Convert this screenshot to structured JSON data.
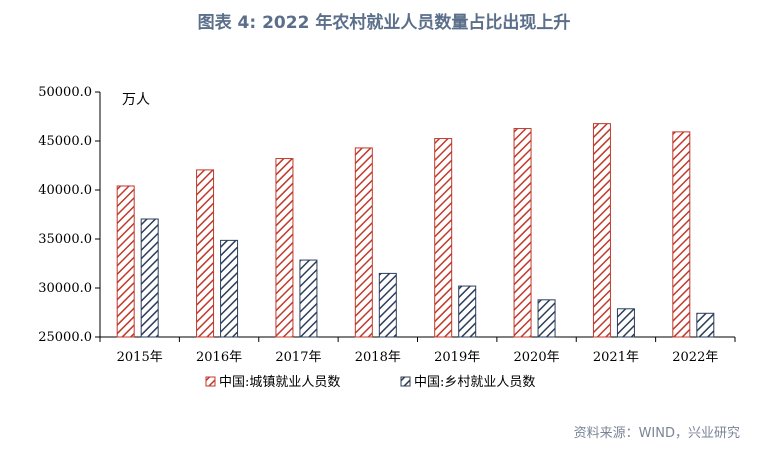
{
  "title": "图表 4:  2022 年农村就业人员数量占比出现上升",
  "source": "资料来源：WIND，兴业研究",
  "colors": {
    "series1": "#c0392b",
    "series2": "#2c3e5a"
  },
  "chart_data": {
    "type": "bar",
    "unit_label": "万人",
    "categories": [
      "2015年",
      "2016年",
      "2017年",
      "2018年",
      "2019年",
      "2020年",
      "2021年",
      "2022年"
    ],
    "series": [
      {
        "name": "中国:城镇就业人员数",
        "values": [
          40410,
          42051,
          43208,
          44292,
          45249,
          46271,
          46773,
          45931
        ]
      },
      {
        "name": "中国:乡村就业人员数",
        "values": [
          37041,
          34861,
          32850,
          31490,
          30198,
          28793,
          27879,
          27420
        ]
      }
    ],
    "ylim": [
      25000,
      50000
    ],
    "yticks": [
      "25000.0",
      "30000.0",
      "35000.0",
      "40000.0",
      "45000.0",
      "50000.0"
    ],
    "ytick_values": [
      25000,
      30000,
      35000,
      40000,
      45000,
      50000
    ],
    "legend_position": "bottom-center"
  }
}
